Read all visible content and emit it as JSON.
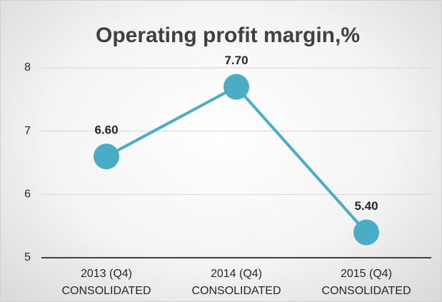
{
  "chart_data": {
    "type": "line",
    "title": "Operating profit margin,%",
    "categories": [
      "2013 (Q4) CONSOLIDATED",
      "2014 (Q4) CONSOLIDATED",
      "2015 (Q4) CONSOLIDATED"
    ],
    "series": [
      {
        "name": "Operating profit margin",
        "color": "#4bacc6",
        "values": [
          6.6,
          7.7,
          5.4
        ],
        "value_labels": [
          "6.60",
          "7.70",
          "5.40"
        ]
      }
    ],
    "ylim": [
      5,
      8
    ],
    "yticks": [
      5,
      6,
      7,
      8
    ],
    "grid": true
  }
}
